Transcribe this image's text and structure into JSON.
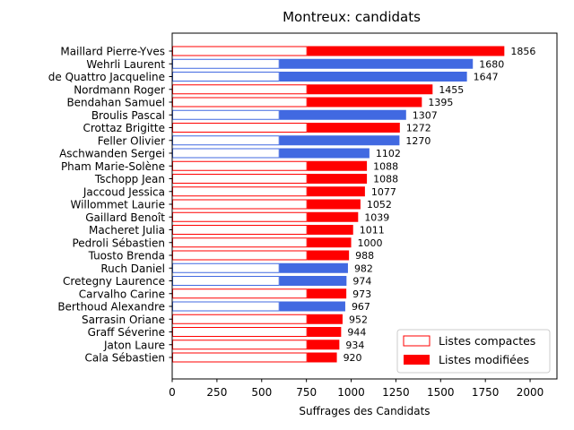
{
  "chart_data": {
    "type": "bar",
    "orientation": "horizontal",
    "stacked": true,
    "title": "Montreux: candidats",
    "xlabel": "Suffrages des Candidats",
    "ylabel": "",
    "xlim": [
      0,
      2150
    ],
    "xticks": [
      0,
      250,
      500,
      750,
      1000,
      1250,
      1500,
      1750,
      2000
    ],
    "grid": false,
    "legend_position": "lower-right",
    "legend": [
      {
        "label": "Listes compactes",
        "style": "outline"
      },
      {
        "label": "Listes modifiées",
        "style": "filled"
      }
    ],
    "categories": [
      "Maillard Pierre-Yves",
      "Wehrli Laurent",
      "de Quattro Jacqueline",
      "Nordmann Roger",
      "Bendahan Samuel",
      "Broulis Pascal",
      "Crottaz Brigitte",
      "Feller Olivier",
      "Aschwanden Sergei",
      "Pham Marie-Solène",
      "Tschopp Jean",
      "Jaccoud Jessica",
      "Willommet Laurie",
      "Gaillard Benoît",
      "Macheret Julia",
      "Pedroli Sébastien",
      "Tuosto Brenda",
      "Ruch Daniel",
      "Cretegny Laurence",
      "Carvalho Carine",
      "Berthoud Alexandre",
      "Sarrasin Oriane",
      "Graff Séverine",
      "Jaton Laure",
      "Cala Sébastien"
    ],
    "colors": [
      "red",
      "blue",
      "blue",
      "red",
      "red",
      "blue",
      "red",
      "blue",
      "blue",
      "red",
      "red",
      "red",
      "red",
      "red",
      "red",
      "red",
      "red",
      "blue",
      "blue",
      "red",
      "blue",
      "red",
      "red",
      "red",
      "red"
    ],
    "palette": {
      "red": "#ff0000",
      "blue": "#4169e1"
    },
    "series": [
      {
        "name": "Listes compactes",
        "values": [
          755,
          600,
          600,
          755,
          755,
          600,
          755,
          600,
          600,
          755,
          755,
          755,
          755,
          755,
          755,
          755,
          755,
          600,
          600,
          755,
          600,
          755,
          755,
          755,
          755
        ]
      },
      {
        "name": "Listes modifiées",
        "values": [
          1101,
          1080,
          1047,
          700,
          640,
          707,
          517,
          670,
          502,
          333,
          333,
          322,
          297,
          284,
          256,
          245,
          233,
          382,
          374,
          218,
          367,
          197,
          189,
          179,
          165
        ]
      }
    ],
    "totals": [
      1856,
      1680,
      1647,
      1455,
      1395,
      1307,
      1272,
      1270,
      1102,
      1088,
      1088,
      1077,
      1052,
      1039,
      1011,
      1000,
      988,
      982,
      974,
      973,
      967,
      952,
      944,
      934,
      920
    ]
  }
}
